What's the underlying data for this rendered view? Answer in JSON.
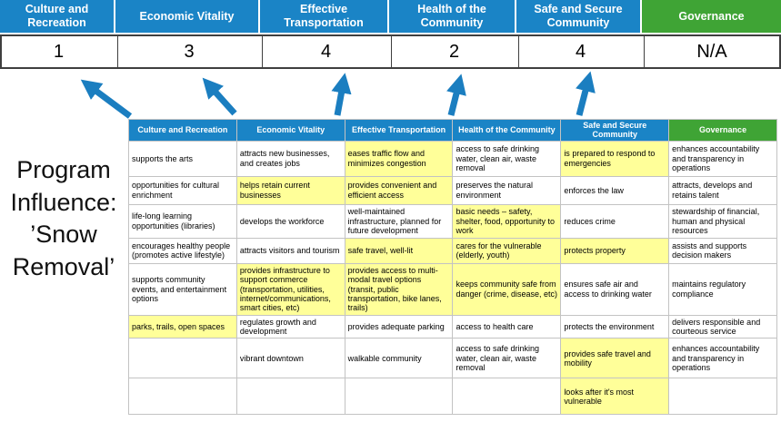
{
  "colors": {
    "header_blue": "#1a84c6",
    "header_green": "#3fa435",
    "highlight_yellow": "#ffff99",
    "arrow_blue": "#1b7ec0"
  },
  "program_label": "Program Influence: ’Snow Removal’",
  "summary": {
    "columns": [
      {
        "label": "Culture and Recreation",
        "score": "1",
        "theme": "blue"
      },
      {
        "label": "Economic Vitality",
        "score": "3",
        "theme": "blue"
      },
      {
        "label": "Effective Transportation",
        "score": "4",
        "theme": "blue"
      },
      {
        "label": "Health of the Community",
        "score": "2",
        "theme": "blue"
      },
      {
        "label": "Safe and Secure Community",
        "score": "4",
        "theme": "blue"
      },
      {
        "label": "Governance",
        "score": "N/A",
        "theme": "green"
      }
    ]
  },
  "matrix": {
    "headers": [
      {
        "label": "Culture and Recreation",
        "theme": "blue"
      },
      {
        "label": "Economic Vitality",
        "theme": "blue"
      },
      {
        "label": "Effective Transportation",
        "theme": "blue"
      },
      {
        "label": "Health of the Community",
        "theme": "blue"
      },
      {
        "label": "Safe and Secure Community",
        "theme": "blue"
      },
      {
        "label": "Governance",
        "theme": "green"
      }
    ],
    "rows": [
      [
        {
          "text": "supports the arts"
        },
        {
          "text": "attracts new businesses, and creates jobs"
        },
        {
          "text": "eases traffic flow and minimizes congestion",
          "highlight": true
        },
        {
          "text": "access to safe drinking water, clean air, waste removal"
        },
        {
          "text": "is prepared to respond to emergencies",
          "highlight": true
        },
        {
          "text": "enhances accountability and transparency in operations"
        }
      ],
      [
        {
          "text": "opportunities for cultural enrichment"
        },
        {
          "text": "helps retain current businesses",
          "highlight": true
        },
        {
          "text": "provides convenient and efficient access",
          "highlight": true
        },
        {
          "text": "preserves the natural environment"
        },
        {
          "text": "enforces the law"
        },
        {
          "text": "attracts, develops and retains talent"
        }
      ],
      [
        {
          "text": "life-long learning opportunities (libraries)"
        },
        {
          "text": "develops the workforce"
        },
        {
          "text": "well-maintained infrastructure, planned for future development"
        },
        {
          "text": "basic needs – safety, shelter, food, opportunity to work",
          "highlight": true
        },
        {
          "text": "reduces crime"
        },
        {
          "text": "stewardship of financial, human and physical resources"
        }
      ],
      [
        {
          "text": "encourages healthy people (promotes active lifestyle)"
        },
        {
          "text": "attracts visitors and tourism"
        },
        {
          "text": "safe travel, well-lit",
          "highlight": true
        },
        {
          "text": "cares for the vulnerable (elderly, youth)",
          "highlight": true
        },
        {
          "text": "protects property",
          "highlight": true
        },
        {
          "text": "assists and supports decision makers"
        }
      ],
      [
        {
          "text": "supports community events, and entertainment options"
        },
        {
          "text": "provides infrastructure to support commerce (transportation, utilities, internet/communications, smart cities, etc)",
          "highlight": true
        },
        {
          "text": "provides access to multi-modal travel options (transit, public transportation, bike lanes, trails)",
          "highlight": true
        },
        {
          "text": "keeps community safe from danger (crime, disease, etc)",
          "highlight": true
        },
        {
          "text": "ensures safe air and access to drinking water"
        },
        {
          "text": "maintains regulatory compliance"
        }
      ],
      [
        {
          "text": "parks, trails, open spaces",
          "highlight": true
        },
        {
          "text": "regulates growth and development"
        },
        {
          "text": "provides adequate parking"
        },
        {
          "text": "access to health care"
        },
        {
          "text": "protects the environment"
        },
        {
          "text": "delivers responsible and courteous service"
        }
      ],
      [
        {
          "text": ""
        },
        {
          "text": "vibrant downtown"
        },
        {
          "text": "walkable community"
        },
        {
          "text": "access to safe drinking water, clean air, waste removal"
        },
        {
          "text": "provides safe travel and mobility",
          "highlight": true
        },
        {
          "text": "enhances accountability and transparency in operations"
        }
      ],
      [
        {
          "text": ""
        },
        {
          "text": ""
        },
        {
          "text": ""
        },
        {
          "text": ""
        },
        {
          "text": "looks after it's most vulnerable",
          "highlight": true
        },
        {
          "text": ""
        }
      ]
    ]
  }
}
